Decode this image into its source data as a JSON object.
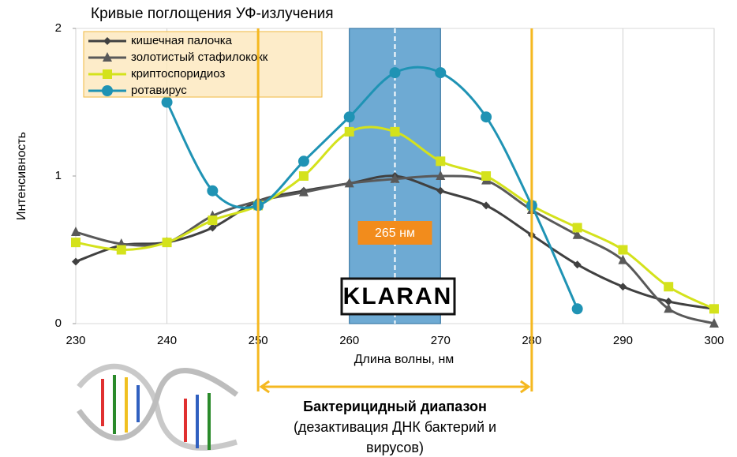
{
  "chart_data": {
    "type": "line",
    "title": "Кривые поглощения УФ-излучения",
    "xlabel": "Длина волны, нм",
    "ylabel": "Интенсивность",
    "x": [
      230,
      235,
      240,
      245,
      250,
      255,
      260,
      265,
      270,
      275,
      280,
      285,
      290,
      295,
      300
    ],
    "series": [
      {
        "name": "кишечная палочка",
        "color": "#404040",
        "marker": "diamond",
        "values": [
          0.42,
          0.53,
          0.55,
          0.65,
          0.83,
          0.9,
          0.95,
          1.0,
          0.9,
          0.8,
          0.6,
          0.4,
          0.25,
          0.15,
          0.1
        ]
      },
      {
        "name": "золотистый стафилококк",
        "color": "#595959",
        "marker": "triangle",
        "values": [
          0.62,
          0.54,
          0.55,
          0.73,
          0.83,
          0.89,
          0.95,
          0.98,
          1.0,
          0.97,
          0.77,
          0.6,
          0.43,
          0.1,
          0.0
        ]
      },
      {
        "name": "криптоспоридиоз",
        "color": "#d4e21c",
        "marker": "square",
        "values": [
          0.55,
          0.5,
          0.55,
          0.7,
          0.8,
          1.0,
          1.3,
          1.3,
          1.1,
          1.0,
          0.8,
          0.65,
          0.5,
          0.25,
          0.1
        ]
      },
      {
        "name": "ротавирус",
        "color": "#1f93b4",
        "marker": "circle",
        "values": [
          null,
          null,
          1.5,
          0.9,
          0.8,
          1.1,
          1.4,
          1.7,
          1.7,
          1.4,
          0.8,
          0.1,
          null,
          null,
          null
        ]
      }
    ],
    "xlim": [
      230,
      300
    ],
    "xticks": [
      230,
      240,
      250,
      260,
      270,
      280,
      290,
      300
    ],
    "ylim": [
      0,
      2
    ],
    "yticks": [
      0,
      1,
      2
    ],
    "grid": true,
    "highlight_band": [
      260,
      270
    ],
    "marker_line": 265,
    "marker_label": "265 нм",
    "range_lines": [
      250,
      280
    ],
    "range_caption": [
      "Бактерицидный диапазон",
      "(дезактивация ДНК бактерий и",
      "вирусов)"
    ],
    "logo": "KLARAN"
  }
}
